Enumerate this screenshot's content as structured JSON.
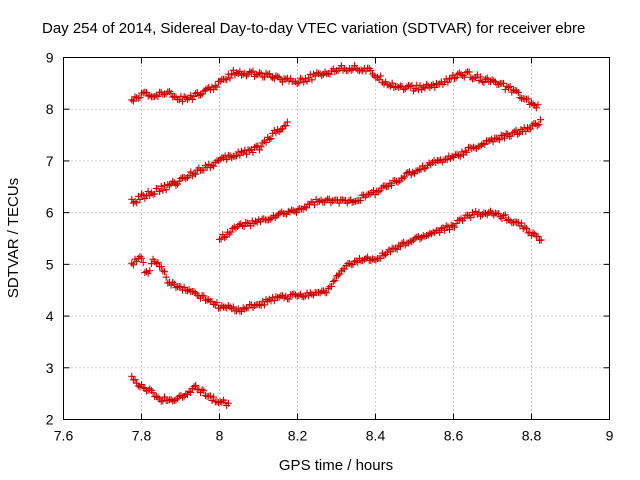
{
  "chart_data": {
    "type": "scatter",
    "title": "Day 254 of 2014, Sidereal Day-to-day VTEC variation (SDTVAR) for receiver ebre",
    "xlabel": "GPS time / hours",
    "ylabel": "SDTVAR / TECUs",
    "xlim": [
      7.6,
      9.0
    ],
    "ylim": [
      2,
      9
    ],
    "xticks": [
      7.6,
      7.8,
      8.0,
      8.2,
      8.4,
      8.6,
      8.8,
      9.0
    ],
    "yticks": [
      2,
      3,
      4,
      5,
      6,
      7,
      8,
      9
    ],
    "xtick_labels": [
      "7.6",
      "7.8",
      "8",
      "8.2",
      "8.4",
      "8.6",
      "8.8",
      "9"
    ],
    "ytick_labels": [
      "2",
      "3",
      "4",
      "5",
      "6",
      "7",
      "8",
      "9"
    ],
    "grid": true,
    "marker": "+",
    "marker_color": "#cc0000",
    "series": [
      {
        "name": "top arc",
        "keypoints": [
          [
            7.775,
            8.2
          ],
          [
            7.8,
            8.28
          ],
          [
            7.83,
            8.25
          ],
          [
            7.86,
            8.35
          ],
          [
            7.9,
            8.2
          ],
          [
            7.95,
            8.28
          ],
          [
            8.0,
            8.5
          ],
          [
            8.04,
            8.72
          ],
          [
            8.1,
            8.68
          ],
          [
            8.15,
            8.6
          ],
          [
            8.2,
            8.55
          ],
          [
            8.25,
            8.65
          ],
          [
            8.3,
            8.78
          ],
          [
            8.35,
            8.8
          ],
          [
            8.38,
            8.75
          ],
          [
            8.42,
            8.55
          ],
          [
            8.45,
            8.45
          ],
          [
            8.5,
            8.4
          ],
          [
            8.55,
            8.45
          ],
          [
            8.6,
            8.62
          ],
          [
            8.63,
            8.68
          ],
          [
            8.66,
            8.62
          ],
          [
            8.7,
            8.52
          ],
          [
            8.74,
            8.42
          ],
          [
            8.78,
            8.2
          ],
          [
            8.82,
            8.02
          ]
        ],
        "noise": 0.06
      },
      {
        "name": "middle rising arc",
        "keypoints": [
          [
            7.775,
            6.2
          ],
          [
            7.8,
            6.3
          ],
          [
            7.85,
            6.45
          ],
          [
            7.9,
            6.62
          ],
          [
            7.95,
            6.85
          ],
          [
            8.0,
            7.0
          ],
          [
            8.05,
            7.15
          ],
          [
            8.1,
            7.25
          ],
          [
            8.14,
            7.55
          ],
          [
            8.175,
            7.72
          ]
        ],
        "noise": 0.06
      },
      {
        "name": "lower rising arc",
        "keypoints": [
          [
            8.0,
            5.5
          ],
          [
            8.05,
            5.75
          ],
          [
            8.1,
            5.82
          ],
          [
            8.15,
            5.95
          ],
          [
            8.2,
            6.05
          ],
          [
            8.25,
            6.22
          ],
          [
            8.3,
            6.22
          ],
          [
            8.35,
            6.25
          ],
          [
            8.4,
            6.4
          ],
          [
            8.45,
            6.6
          ],
          [
            8.5,
            6.8
          ],
          [
            8.55,
            6.98
          ],
          [
            8.6,
            7.08
          ],
          [
            8.65,
            7.25
          ],
          [
            8.7,
            7.4
          ],
          [
            8.75,
            7.52
          ],
          [
            8.8,
            7.65
          ],
          [
            8.825,
            7.78
          ]
        ],
        "noise": 0.05
      },
      {
        "name": "dip arc",
        "keypoints": [
          [
            7.775,
            5.0
          ],
          [
            7.8,
            5.15
          ],
          [
            7.81,
            4.8
          ],
          [
            7.82,
            4.85
          ],
          [
            7.83,
            5.1
          ],
          [
            7.85,
            4.95
          ],
          [
            7.87,
            4.65
          ],
          [
            7.9,
            4.55
          ],
          [
            7.95,
            4.4
          ],
          [
            8.0,
            4.18
          ],
          [
            8.05,
            4.12
          ],
          [
            8.1,
            4.22
          ],
          [
            8.15,
            4.35
          ],
          [
            8.2,
            4.4
          ],
          [
            8.25,
            4.45
          ],
          [
            8.28,
            4.5
          ],
          [
            8.3,
            4.75
          ],
          [
            8.33,
            4.98
          ],
          [
            8.36,
            5.08
          ],
          [
            8.4,
            5.12
          ],
          [
            8.45,
            5.3
          ],
          [
            8.5,
            5.48
          ],
          [
            8.55,
            5.62
          ],
          [
            8.6,
            5.75
          ],
          [
            8.63,
            5.92
          ],
          [
            8.66,
            5.98
          ],
          [
            8.7,
            5.98
          ],
          [
            8.73,
            5.92
          ],
          [
            8.77,
            5.78
          ],
          [
            8.8,
            5.6
          ],
          [
            8.825,
            5.45
          ]
        ],
        "noise": 0.05
      },
      {
        "name": "bottom short arc",
        "keypoints": [
          [
            7.775,
            2.82
          ],
          [
            7.79,
            2.68
          ],
          [
            7.82,
            2.55
          ],
          [
            7.85,
            2.4
          ],
          [
            7.88,
            2.38
          ],
          [
            7.91,
            2.45
          ],
          [
            7.94,
            2.62
          ],
          [
            7.97,
            2.45
          ],
          [
            8.0,
            2.35
          ],
          [
            8.025,
            2.3
          ]
        ],
        "noise": 0.05
      }
    ]
  }
}
